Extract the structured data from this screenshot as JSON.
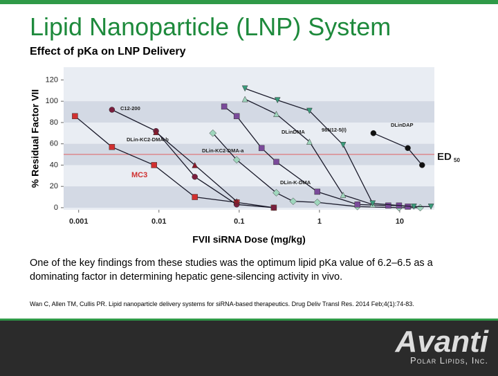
{
  "title": "Lipid Nanoparticle (LNP) System",
  "subtitle": "Effect of pKa on LNP Delivery",
  "body": "One of the key findings from these studies was the optimum lipid pKa value of 6.2–6.5 as a dominating factor in determining hepatic gene-silencing activity in vivo.",
  "citation": "Wan C, Allen TM, Cullis PR. Lipid nanoparticle delivery systems for siRNA-based therapeutics. Drug Deliv Transl Res. 2014 Feb;4(1):74-83.",
  "logo": {
    "name": "Avanti",
    "tagline": "Polar Lipids, Inc."
  },
  "chart_data": {
    "type": "line",
    "x_label": "FVII siRNA Dose (mg/kg)",
    "y_label": "% Residual Factor VII",
    "xlog": true,
    "xlim": [
      0.00065,
      27
    ],
    "xticks": [
      0.001,
      0.01,
      0.1,
      1,
      10
    ],
    "ylim": [
      -2,
      132
    ],
    "yticks": [
      0,
      20,
      40,
      60,
      80,
      100,
      120
    ],
    "bands": true,
    "reference_line": {
      "value": 50,
      "color": "#e06060",
      "label": "ED",
      "label_sub": "50"
    },
    "series": [
      {
        "name": "MC3",
        "color": "#d03030",
        "marker": "square",
        "x": [
          0.0009,
          0.0026,
          0.0087,
          0.028,
          0.093,
          0.27
        ],
        "values": [
          86,
          57,
          40,
          10,
          5,
          0
        ]
      },
      {
        "name": "C12-200",
        "color": "#7a1e3e",
        "marker": "circle",
        "x": [
          0.0026,
          0.0092,
          0.028,
          0.093,
          0.27
        ],
        "values": [
          92,
          72,
          29,
          3,
          0
        ]
      },
      {
        "name": "DLin-KC2-DMA-b",
        "color": "#8b1a2a",
        "marker": "triangle",
        "x": [
          0.0092,
          0.028,
          0.093
        ],
        "values": [
          71,
          40,
          6
        ]
      },
      {
        "name": "DLin-KC2-DMA-a",
        "color": "#9fd6bd",
        "marker": "diamond",
        "x": [
          0.047,
          0.093,
          0.29,
          0.47,
          0.94,
          2.97,
          9.8,
          18
        ],
        "values": [
          70,
          45,
          14,
          6,
          5,
          1,
          0,
          0
        ]
      },
      {
        "name": "DLin-K-DMA",
        "color": "#7a4a9a",
        "marker": "square",
        "x": [
          0.065,
          0.093,
          0.19,
          0.29,
          0.94,
          2.97,
          7.2,
          9.8,
          12.6
        ],
        "values": [
          95,
          86,
          56,
          43,
          15,
          3,
          2,
          2,
          1
        ]
      },
      {
        "name": "DLinDMA",
        "color": "#9fd6bd",
        "marker": "triangle",
        "x": [
          0.118,
          0.29,
          0.75,
          1.97,
          4.6
        ],
        "values": [
          102,
          88,
          62,
          12,
          3
        ]
      },
      {
        "name": "98N12-5(I)",
        "color": "#3a9a7a",
        "marker": "triangle-down",
        "x": [
          0.118,
          0.3,
          0.75,
          1.97,
          4.6,
          15,
          24.5
        ],
        "values": [
          112,
          101,
          91,
          59,
          4,
          1,
          1
        ]
      },
      {
        "name": "DLinDAP",
        "color": "#111111",
        "marker": "circle",
        "x": [
          4.7,
          12.6,
          19
        ],
        "values": [
          70,
          56,
          40
        ]
      }
    ]
  }
}
